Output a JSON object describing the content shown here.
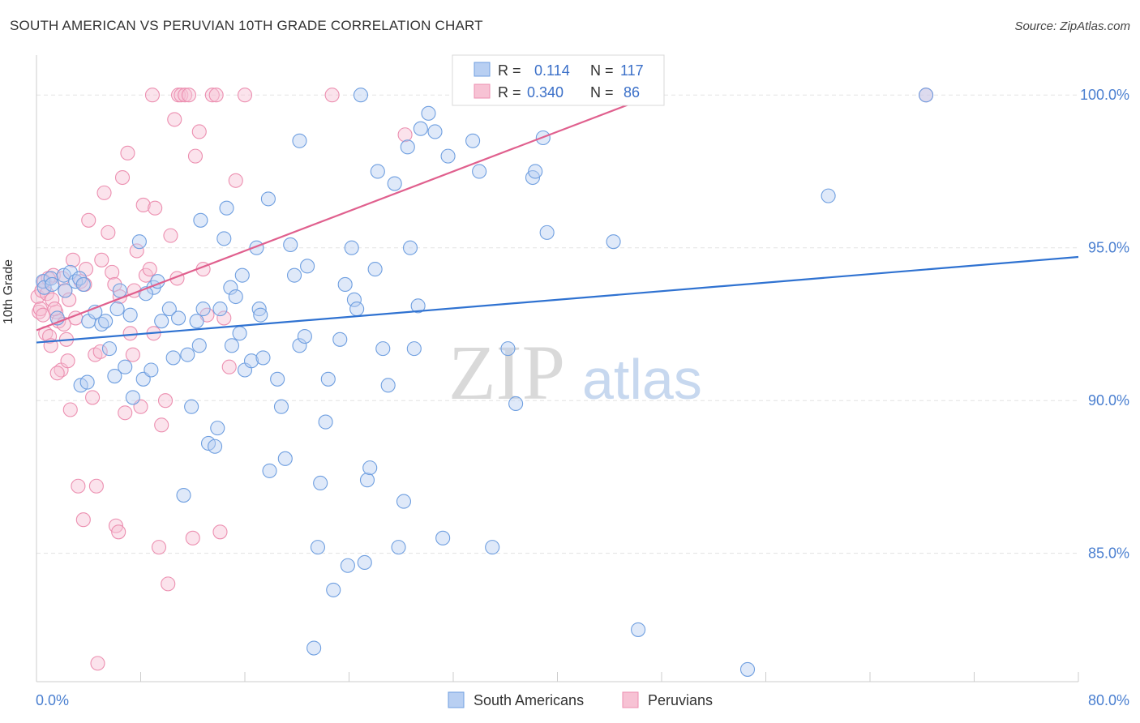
{
  "header": {
    "title": "SOUTH AMERICAN VS PERUVIAN 10TH GRADE CORRELATION CHART",
    "source": "Source: ZipAtlas.com"
  },
  "watermark": {
    "zip": "ZIP",
    "atlas": "atlas"
  },
  "colors": {
    "blue": "#6f9fe0",
    "blue_fill": "#b8cff2",
    "blue_line": "#2f72d1",
    "pink": "#ec8fb0",
    "pink_fill": "#f7c2d4",
    "pink_line": "#e0608e",
    "tick_text": "#4a7fd0",
    "grid": "#e3e3e3"
  },
  "legend": {
    "rows": [
      {
        "r_label": "R =",
        "r_value": "0.114",
        "n_label": "N =",
        "n_value": "117"
      },
      {
        "r_label": "R =",
        "r_value": "0.340",
        "n_label": "N =",
        "n_value": "86"
      }
    ]
  },
  "bottom_legend": [
    "South Americans",
    "Peruvians"
  ],
  "chart_data": {
    "type": "scatter",
    "title": "SOUTH AMERICAN VS PERUVIAN 10TH GRADE CORRELATION CHART",
    "xlabel": "",
    "ylabel": "10th Grade",
    "xlim": [
      0,
      80
    ],
    "ylim": [
      80.8,
      101.2
    ],
    "x_tick_labels": [
      "0.0%",
      "80.0%"
    ],
    "y_ticks": [
      85,
      90,
      95,
      100
    ],
    "y_tick_labels": [
      "85.0%",
      "90.0%",
      "95.0%",
      "100.0%"
    ],
    "grid": true,
    "legend_position": "top-center",
    "series": [
      {
        "name": "South Americans",
        "R": 0.114,
        "N": 117,
        "trend": {
          "x": [
            0,
            80
          ],
          "y": [
            91.9,
            94.7
          ]
        },
        "points": [
          [
            0.5,
            93.9
          ],
          [
            0.6,
            93.7
          ],
          [
            1.1,
            94.0
          ],
          [
            1.2,
            93.8
          ],
          [
            1.6,
            92.7
          ],
          [
            2.1,
            94.1
          ],
          [
            2.6,
            94.2
          ],
          [
            3.0,
            93.9
          ],
          [
            3.3,
            94.0
          ],
          [
            3.6,
            93.8
          ],
          [
            3.4,
            90.5
          ],
          [
            4.0,
            92.6
          ],
          [
            4.5,
            92.9
          ],
          [
            5.0,
            92.5
          ],
          [
            5.3,
            92.6
          ],
          [
            5.6,
            91.7
          ],
          [
            6.0,
            90.8
          ],
          [
            6.4,
            93.6
          ],
          [
            6.8,
            91.1
          ],
          [
            7.2,
            92.8
          ],
          [
            7.4,
            90.1
          ],
          [
            7.9,
            95.2
          ],
          [
            8.2,
            90.7
          ],
          [
            8.8,
            91.0
          ],
          [
            9.0,
            93.7
          ],
          [
            9.3,
            93.9
          ],
          [
            10.2,
            93.0
          ],
          [
            10.5,
            91.4
          ],
          [
            10.9,
            92.7
          ],
          [
            11.3,
            86.9
          ],
          [
            11.6,
            91.5
          ],
          [
            11.9,
            89.8
          ],
          [
            12.3,
            92.6
          ],
          [
            12.5,
            91.8
          ],
          [
            12.6,
            95.9
          ],
          [
            13.2,
            88.6
          ],
          [
            13.7,
            88.5
          ],
          [
            13.9,
            89.1
          ],
          [
            14.1,
            93.0
          ],
          [
            14.4,
            95.3
          ],
          [
            14.6,
            96.3
          ],
          [
            14.9,
            93.7
          ],
          [
            15.3,
            93.4
          ],
          [
            15.6,
            92.2
          ],
          [
            15.8,
            94.1
          ],
          [
            16.0,
            91.0
          ],
          [
            16.5,
            91.3
          ],
          [
            16.9,
            95.0
          ],
          [
            17.1,
            93.0
          ],
          [
            17.4,
            91.4
          ],
          [
            17.8,
            96.6
          ],
          [
            17.9,
            87.7
          ],
          [
            18.5,
            90.7
          ],
          [
            18.8,
            89.8
          ],
          [
            19.1,
            88.1
          ],
          [
            19.5,
            95.1
          ],
          [
            19.8,
            94.1
          ],
          [
            20.2,
            91.8
          ],
          [
            20.6,
            92.1
          ],
          [
            20.8,
            94.4
          ],
          [
            20.2,
            98.5
          ],
          [
            21.3,
            81.9
          ],
          [
            21.6,
            85.2
          ],
          [
            21.8,
            87.3
          ],
          [
            22.2,
            89.3
          ],
          [
            22.4,
            90.7
          ],
          [
            22.8,
            83.8
          ],
          [
            23.3,
            92.0
          ],
          [
            23.7,
            93.8
          ],
          [
            23.9,
            84.6
          ],
          [
            24.2,
            95.0
          ],
          [
            24.4,
            93.3
          ],
          [
            24.9,
            100.0
          ],
          [
            25.2,
            84.7
          ],
          [
            25.4,
            87.4
          ],
          [
            25.6,
            87.8
          ],
          [
            26.0,
            94.3
          ],
          [
            26.2,
            97.5
          ],
          [
            26.6,
            91.7
          ],
          [
            27.0,
            90.5
          ],
          [
            27.5,
            97.1
          ],
          [
            27.8,
            85.2
          ],
          [
            28.2,
            86.7
          ],
          [
            28.5,
            98.3
          ],
          [
            28.7,
            95.0
          ],
          [
            29.0,
            91.7
          ],
          [
            29.3,
            93.1
          ],
          [
            29.5,
            98.9
          ],
          [
            30.1,
            99.4
          ],
          [
            30.6,
            98.8
          ],
          [
            31.2,
            85.5
          ],
          [
            31.6,
            98.0
          ],
          [
            33.5,
            98.5
          ],
          [
            34.0,
            97.5
          ],
          [
            35.0,
            85.2
          ],
          [
            36.2,
            91.7
          ],
          [
            36.8,
            89.9
          ],
          [
            38.1,
            97.3
          ],
          [
            38.3,
            97.5
          ],
          [
            38.9,
            98.6
          ],
          [
            39.2,
            95.5
          ],
          [
            44.3,
            95.2
          ],
          [
            46.2,
            82.5
          ],
          [
            54.6,
            81.2
          ],
          [
            60.8,
            96.7
          ],
          [
            68.3,
            100.0
          ],
          [
            39.3,
            100.0
          ],
          [
            40.0,
            100.0
          ],
          [
            2.2,
            93.6
          ],
          [
            3.9,
            90.6
          ],
          [
            6.2,
            93.0
          ],
          [
            8.4,
            93.5
          ],
          [
            9.6,
            92.6
          ],
          [
            12.8,
            93.0
          ],
          [
            15.0,
            91.8
          ],
          [
            17.2,
            92.8
          ],
          [
            24.6,
            93.0
          ]
        ]
      },
      {
        "name": "Peruvians",
        "R": 0.34,
        "N": 86,
        "trend": {
          "x": [
            0,
            48
          ],
          "y": [
            92.3,
            100.1
          ]
        },
        "points": [
          [
            0.1,
            93.4
          ],
          [
            0.2,
            92.9
          ],
          [
            0.3,
            93.0
          ],
          [
            0.4,
            93.6
          ],
          [
            0.5,
            92.8
          ],
          [
            0.6,
            93.9
          ],
          [
            0.7,
            92.2
          ],
          [
            0.8,
            93.5
          ],
          [
            1.0,
            92.1
          ],
          [
            1.1,
            91.8
          ],
          [
            1.2,
            93.3
          ],
          [
            1.3,
            94.1
          ],
          [
            1.5,
            92.9
          ],
          [
            1.7,
            92.6
          ],
          [
            1.9,
            91.0
          ],
          [
            2.0,
            94.0
          ],
          [
            2.2,
            93.6
          ],
          [
            2.4,
            91.3
          ],
          [
            2.5,
            93.3
          ],
          [
            2.6,
            89.7
          ],
          [
            2.8,
            94.6
          ],
          [
            3.0,
            92.7
          ],
          [
            3.2,
            87.2
          ],
          [
            3.4,
            93.9
          ],
          [
            3.6,
            86.1
          ],
          [
            3.8,
            94.3
          ],
          [
            4.0,
            95.9
          ],
          [
            4.3,
            90.1
          ],
          [
            4.5,
            91.5
          ],
          [
            4.7,
            81.4
          ],
          [
            4.9,
            91.6
          ],
          [
            5.2,
            96.8
          ],
          [
            5.5,
            95.5
          ],
          [
            5.8,
            94.2
          ],
          [
            6.0,
            93.8
          ],
          [
            6.1,
            85.9
          ],
          [
            6.3,
            85.7
          ],
          [
            6.6,
            97.3
          ],
          [
            6.8,
            89.6
          ],
          [
            7.0,
            98.1
          ],
          [
            7.2,
            92.2
          ],
          [
            7.5,
            93.6
          ],
          [
            7.7,
            94.9
          ],
          [
            8.0,
            89.8
          ],
          [
            8.2,
            96.4
          ],
          [
            8.4,
            94.1
          ],
          [
            8.7,
            94.3
          ],
          [
            8.9,
            100.0
          ],
          [
            9.1,
            96.3
          ],
          [
            9.4,
            85.2
          ],
          [
            9.6,
            89.2
          ],
          [
            9.9,
            90.0
          ],
          [
            10.1,
            84.0
          ],
          [
            10.3,
            95.4
          ],
          [
            10.6,
            99.2
          ],
          [
            10.9,
            100.0
          ],
          [
            11.1,
            100.0
          ],
          [
            11.4,
            100.0
          ],
          [
            11.7,
            100.0
          ],
          [
            12.0,
            85.5
          ],
          [
            12.2,
            98.0
          ],
          [
            12.5,
            98.8
          ],
          [
            12.8,
            94.3
          ],
          [
            13.1,
            92.8
          ],
          [
            13.5,
            100.0
          ],
          [
            13.8,
            100.0
          ],
          [
            14.1,
            85.7
          ],
          [
            14.4,
            92.7
          ],
          [
            14.8,
            91.1
          ],
          [
            15.3,
            97.2
          ],
          [
            16.0,
            100.0
          ],
          [
            22.7,
            100.0
          ],
          [
            28.3,
            98.7
          ],
          [
            68.3,
            100.0
          ],
          [
            0.9,
            94.0
          ],
          [
            1.6,
            90.9
          ],
          [
            2.1,
            92.5
          ],
          [
            3.7,
            93.8
          ],
          [
            4.6,
            87.2
          ],
          [
            5.0,
            94.6
          ],
          [
            6.4,
            93.4
          ],
          [
            7.4,
            91.5
          ],
          [
            9.0,
            92.2
          ],
          [
            10.8,
            94.0
          ],
          [
            1.4,
            93.0
          ],
          [
            2.3,
            92.0
          ]
        ]
      }
    ]
  }
}
